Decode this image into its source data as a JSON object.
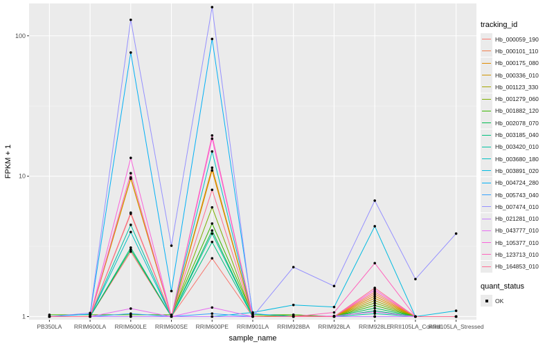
{
  "chart_data": {
    "type": "line",
    "xlabel": "sample_name",
    "ylabel": "FPKM + 1",
    "y_scale": "log10",
    "ylim": [
      0.95,
      170
    ],
    "grid": true,
    "legend_position": "right",
    "yticks": [
      1,
      10,
      100
    ],
    "ytick_labels": [
      "1",
      "10",
      "100"
    ],
    "categories": [
      "PB350LA",
      "RRIM600LA",
      "RRIM600LE",
      "RRIM600SE",
      "RRIM600PE",
      "RRIM901LA",
      "RRIM928BA",
      "RRIM928LA",
      "RRIM928LE",
      "RRII105LA_Control",
      "RRII105LA_Stressed"
    ],
    "legend_title": "tracking_id",
    "series": [
      {
        "name": "Hb_000059_190",
        "color": "#F8766D",
        "values": [
          1,
          1,
          2.9,
          1,
          2.6,
          1,
          1,
          1,
          1.5,
          1,
          1
        ]
      },
      {
        "name": "Hb_000101_110",
        "color": "#F07E4D",
        "values": [
          1,
          1,
          5.4,
          1,
          11,
          1,
          1,
          1,
          1.45,
          1,
          1
        ]
      },
      {
        "name": "Hb_000175_080",
        "color": "#E08B00",
        "values": [
          1,
          1,
          9.6,
          1,
          11,
          1,
          1,
          1,
          1.4,
          1,
          1
        ]
      },
      {
        "name": "Hb_000336_010",
        "color": "#CF9400",
        "values": [
          1,
          1,
          9.8,
          1,
          11.5,
          1,
          1.01,
          1,
          1.35,
          1,
          1
        ]
      },
      {
        "name": "Hb_001123_330",
        "color": "#A3A500",
        "values": [
          1,
          1,
          1,
          1,
          1,
          1,
          1,
          1,
          1.3,
          1,
          1
        ]
      },
      {
        "name": "Hb_001279_060",
        "color": "#7CAE00",
        "values": [
          1,
          1,
          1,
          1,
          6,
          1,
          1.03,
          1,
          1.25,
          1,
          1
        ]
      },
      {
        "name": "Hb_001882_120",
        "color": "#39B600",
        "values": [
          1.03,
          1.03,
          1.03,
          1.03,
          4.6,
          1.03,
          1.03,
          1,
          1.2,
          1,
          1
        ]
      },
      {
        "name": "Hb_002078_070",
        "color": "#00BB4E",
        "values": [
          1,
          1,
          3,
          1,
          4.1,
          1,
          1,
          1,
          1.15,
          1,
          1
        ]
      },
      {
        "name": "Hb_003185_040",
        "color": "#00BF7D",
        "values": [
          1,
          1,
          3.1,
          1,
          3.4,
          1,
          1,
          1,
          1.1,
          1,
          1
        ]
      },
      {
        "name": "Hb_003420_010",
        "color": "#00C1A3",
        "values": [
          1,
          1,
          4.5,
          1,
          3.9,
          1,
          1,
          1,
          1.05,
          1,
          1
        ]
      },
      {
        "name": "Hb_003680_180",
        "color": "#00BFC4",
        "values": [
          1,
          1,
          4,
          1,
          15,
          1,
          1,
          1,
          1,
          1,
          1
        ]
      },
      {
        "name": "Hb_003891_020",
        "color": "#00BAE0",
        "values": [
          1,
          1,
          1,
          1,
          1,
          1.07,
          1.21,
          1.17,
          4.4,
          1,
          1.1
        ]
      },
      {
        "name": "Hb_004724_280",
        "color": "#00B0F6",
        "values": [
          1,
          1.04,
          76,
          1.52,
          95,
          1.05,
          1,
          1,
          1,
          1,
          1
        ]
      },
      {
        "name": "Hb_005743_040",
        "color": "#35A2FF",
        "values": [
          1,
          1,
          1.05,
          1,
          1.05,
          1,
          1,
          1,
          1,
          1,
          1
        ]
      },
      {
        "name": "Hb_007474_010",
        "color": "#9590FF",
        "values": [
          1,
          1.06,
          130,
          3.2,
          160,
          1,
          2.25,
          1.65,
          6.7,
          1.85,
          3.9
        ]
      },
      {
        "name": "Hb_021281_010",
        "color": "#C77CFF",
        "values": [
          1,
          1,
          1,
          1,
          1,
          1,
          1,
          1,
          1,
          1,
          1
        ]
      },
      {
        "name": "Hb_043777_010",
        "color": "#E76BF3",
        "values": [
          1,
          1,
          1.14,
          1,
          1.16,
          1,
          1,
          1.01,
          1.08,
          1,
          1
        ]
      },
      {
        "name": "Hb_105377_010",
        "color": "#FA62DB",
        "values": [
          1,
          1,
          13.5,
          1,
          18.5,
          1,
          1,
          1,
          1.55,
          1,
          1
        ]
      },
      {
        "name": "Hb_123713_010",
        "color": "#FF62BC",
        "values": [
          1,
          1,
          10.5,
          1,
          19.5,
          1,
          1,
          1.07,
          2.4,
          1,
          1
        ]
      },
      {
        "name": "Hb_164853_010",
        "color": "#FF6C91",
        "values": [
          1,
          1,
          5.5,
          1,
          8,
          1,
          1,
          1,
          1.6,
          1,
          1
        ]
      }
    ],
    "legend2_title": "quant_status",
    "legend2_items": [
      "OK"
    ]
  }
}
